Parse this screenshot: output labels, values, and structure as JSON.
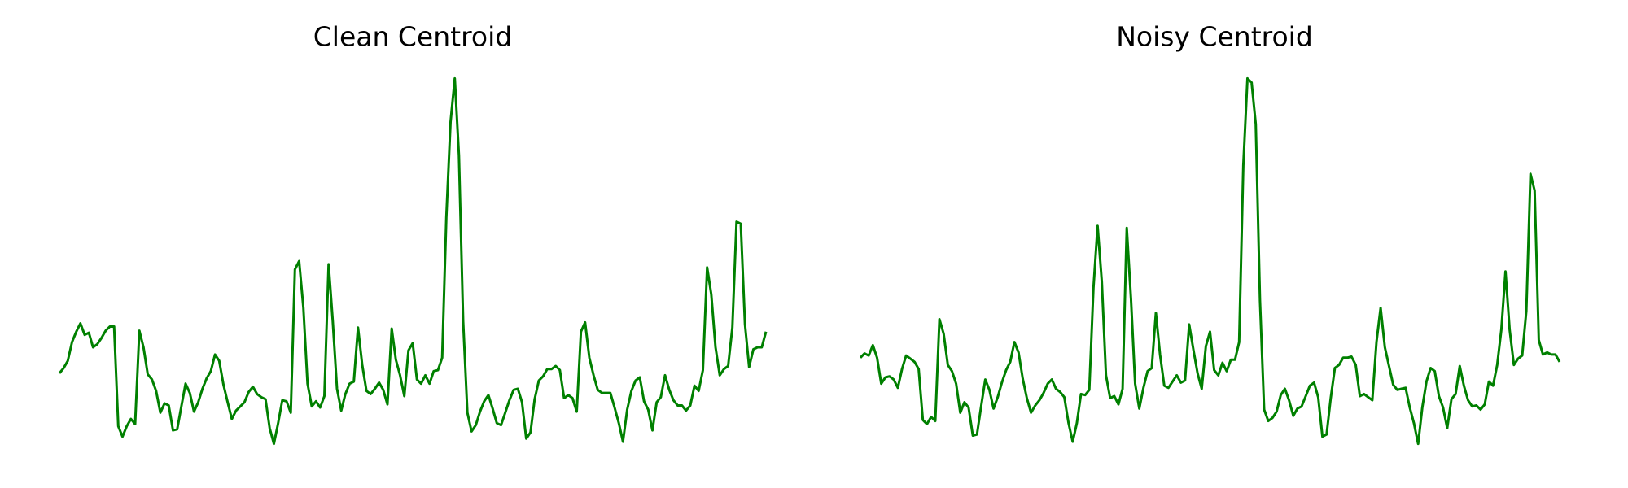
{
  "chart_data": [
    {
      "type": "line",
      "title": "Clean Centroid",
      "color": "#008000",
      "ylim": [
        0,
        380
      ],
      "values": [
        80,
        85,
        92,
        110,
        120,
        128,
        117,
        119,
        105,
        108,
        114,
        121,
        125,
        125,
        29,
        19,
        29,
        36,
        31,
        121,
        105,
        79,
        74,
        63,
        42,
        51,
        49,
        25,
        26,
        48,
        70,
        61,
        43,
        52,
        65,
        75,
        82,
        98,
        92,
        69,
        52,
        36,
        44,
        48,
        52,
        62,
        67,
        60,
        57,
        55,
        27,
        12,
        32,
        54,
        53,
        42,
        180,
        188,
        143,
        70,
        48,
        53,
        47,
        58,
        185,
        130,
        65,
        44,
        60,
        70,
        72,
        124,
        88,
        63,
        60,
        65,
        71,
        64,
        50,
        123,
        93,
        78,
        58,
        102,
        109,
        74,
        70,
        78,
        70,
        82,
        83,
        95,
        230,
        322,
        364,
        290,
        130,
        42,
        24,
        30,
        43,
        53,
        59,
        46,
        32,
        30,
        42,
        54,
        64,
        65,
        52,
        17,
        23,
        55,
        73,
        77,
        84,
        84,
        87,
        83,
        56,
        59,
        56,
        43,
        120,
        129,
        95,
        78,
        64,
        61,
        61,
        61,
        47,
        32,
        14,
        45,
        63,
        73,
        76,
        53,
        45,
        25,
        52,
        57,
        78,
        64,
        54,
        49,
        49,
        44,
        49,
        68,
        63,
        83,
        182,
        156,
        105,
        78,
        84,
        87,
        124,
        226,
        224,
        127,
        86,
        103,
        105,
        105,
        120
      ]
    },
    {
      "type": "line",
      "title": "Noisy Centroid",
      "color": "#008000",
      "ylim": [
        0,
        380
      ],
      "values": [
        95,
        99,
        97,
        107,
        95,
        70,
        76,
        77,
        74,
        66,
        84,
        97,
        94,
        91,
        84,
        35,
        31,
        38,
        34,
        132,
        118,
        88,
        82,
        70,
        42,
        52,
        47,
        20,
        21,
        48,
        74,
        64,
        46,
        57,
        71,
        83,
        91,
        110,
        100,
        75,
        56,
        42,
        49,
        54,
        61,
        70,
        74,
        65,
        62,
        57,
        32,
        14,
        32,
        60,
        59,
        64,
        162,
        222,
        168,
        78,
        56,
        58,
        50,
        65,
        220,
        152,
        70,
        46,
        66,
        82,
        85,
        138,
        98,
        68,
        66,
        72,
        78,
        71,
        73,
        127,
        103,
        80,
        65,
        106,
        120,
        83,
        78,
        90,
        82,
        93,
        93,
        110,
        280,
        364,
        360,
        320,
        150,
        45,
        34,
        37,
        43,
        59,
        65,
        54,
        39,
        46,
        48,
        58,
        68,
        71,
        57,
        19,
        21,
        56,
        85,
        88,
        95,
        95,
        96,
        88,
        58,
        60,
        57,
        54,
        110,
        143,
        105,
        87,
        69,
        64,
        65,
        66,
        47,
        32,
        12,
        47,
        72,
        85,
        82,
        58,
        47,
        27,
        55,
        60,
        87,
        68,
        54,
        48,
        49,
        45,
        50,
        72,
        68,
        88,
        122,
        178,
        122,
        88,
        94,
        97,
        140,
        272,
        256,
        112,
        98,
        100,
        98,
        98,
        91
      ]
    }
  ]
}
